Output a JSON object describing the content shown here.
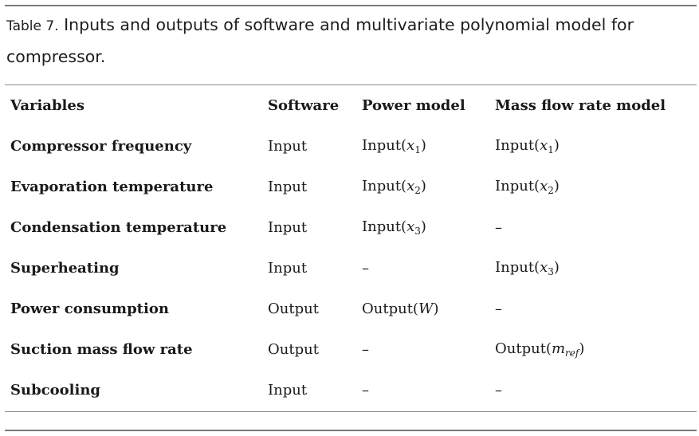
{
  "caption": {
    "label": "Table 7.",
    "text": " Inputs and outputs of software and multivariate polynomial model for compressor."
  },
  "table": {
    "headers": [
      "Variables",
      "Software",
      "Power model",
      "Mass flow rate model"
    ],
    "rows": [
      {
        "variable": "Compressor frequency",
        "software": "Input",
        "power_model": "Input(x1)",
        "mass_flow_model": "Input(x1)"
      },
      {
        "variable": "Evaporation temperature",
        "software": "Input",
        "power_model": "Input(x2)",
        "mass_flow_model": "Input(x2)"
      },
      {
        "variable": "Condensation temperature",
        "software": "Input",
        "power_model": "Input(x3)",
        "mass_flow_model": "–"
      },
      {
        "variable": "Superheating",
        "software": "Input",
        "power_model": "–",
        "mass_flow_model": "Input(x3)"
      },
      {
        "variable": "Power consumption",
        "software": "Output",
        "power_model": "Output(W)",
        "mass_flow_model": "–"
      },
      {
        "variable": "Suction mass flow rate",
        "software": "Output",
        "power_model": "–",
        "mass_flow_model": "Output(mref)"
      },
      {
        "variable": "Subcooling",
        "software": "Input",
        "power_model": "–",
        "mass_flow_model": "–"
      }
    ]
  }
}
